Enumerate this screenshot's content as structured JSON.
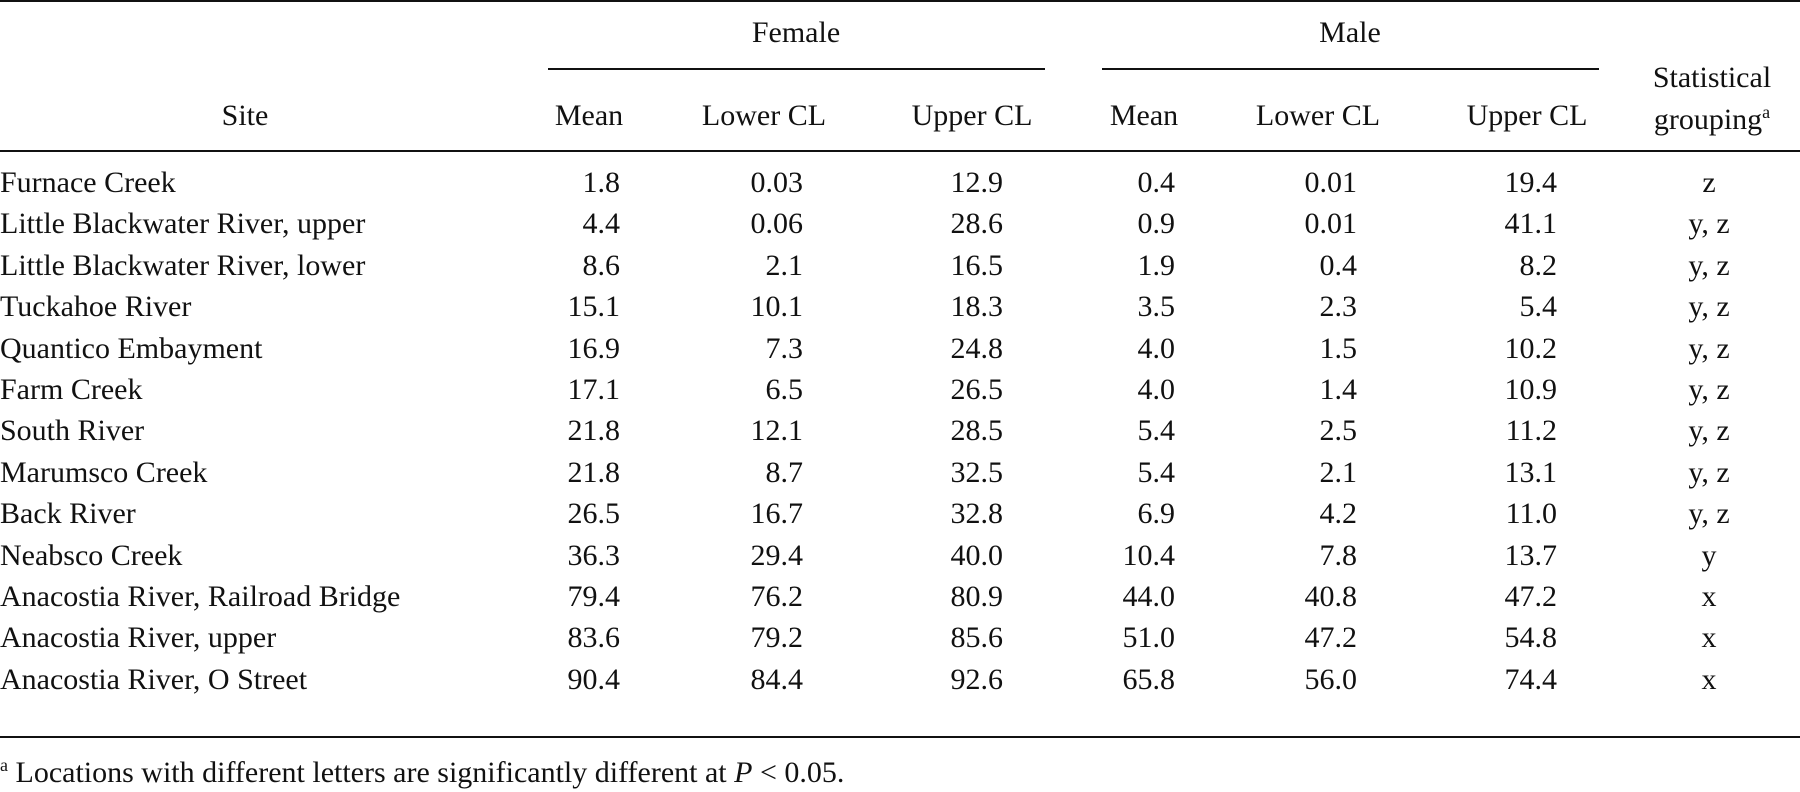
{
  "table": {
    "group_female": "Female",
    "group_male": "Male",
    "col_site": "Site",
    "col_mean": "Mean",
    "col_lower": "Lower CL",
    "col_upper": "Upper CL",
    "col_group_line1": "Statistical",
    "col_group_line2": "grouping",
    "col_group_sup": "a",
    "rows": [
      {
        "site": "Furnace Creek",
        "f_mean": "1.8",
        "f_lower": "0.03",
        "f_upper": "12.9",
        "m_mean": "0.4",
        "m_lower": "0.01",
        "m_upper": "19.4",
        "group": "z"
      },
      {
        "site": "Little Blackwater River, upper",
        "f_mean": "4.4",
        "f_lower": "0.06",
        "f_upper": "28.6",
        "m_mean": "0.9",
        "m_lower": "0.01",
        "m_upper": "41.1",
        "group": "y, z"
      },
      {
        "site": "Little Blackwater River, lower",
        "f_mean": "8.6",
        "f_lower": "2.1",
        "f_upper": "16.5",
        "m_mean": "1.9",
        "m_lower": "0.4",
        "m_upper": "8.2",
        "group": "y, z"
      },
      {
        "site": "Tuckahoe River",
        "f_mean": "15.1",
        "f_lower": "10.1",
        "f_upper": "18.3",
        "m_mean": "3.5",
        "m_lower": "2.3",
        "m_upper": "5.4",
        "group": "y, z"
      },
      {
        "site": "Quantico Embayment",
        "f_mean": "16.9",
        "f_lower": "7.3",
        "f_upper": "24.8",
        "m_mean": "4.0",
        "m_lower": "1.5",
        "m_upper": "10.2",
        "group": "y, z"
      },
      {
        "site": "Farm Creek",
        "f_mean": "17.1",
        "f_lower": "6.5",
        "f_upper": "26.5",
        "m_mean": "4.0",
        "m_lower": "1.4",
        "m_upper": "10.9",
        "group": "y, z"
      },
      {
        "site": "South River",
        "f_mean": "21.8",
        "f_lower": "12.1",
        "f_upper": "28.5",
        "m_mean": "5.4",
        "m_lower": "2.5",
        "m_upper": "11.2",
        "group": "y, z"
      },
      {
        "site": "Marumsco Creek",
        "f_mean": "21.8",
        "f_lower": "8.7",
        "f_upper": "32.5",
        "m_mean": "5.4",
        "m_lower": "2.1",
        "m_upper": "13.1",
        "group": "y, z"
      },
      {
        "site": "Back River",
        "f_mean": "26.5",
        "f_lower": "16.7",
        "f_upper": "32.8",
        "m_mean": "6.9",
        "m_lower": "4.2",
        "m_upper": "11.0",
        "group": "y, z"
      },
      {
        "site": "Neabsco Creek",
        "f_mean": "36.3",
        "f_lower": "29.4",
        "f_upper": "40.0",
        "m_mean": "10.4",
        "m_lower": "7.8",
        "m_upper": "13.7",
        "group": "y"
      },
      {
        "site": "Anacostia River, Railroad Bridge",
        "f_mean": "79.4",
        "f_lower": "76.2",
        "f_upper": "80.9",
        "m_mean": "44.0",
        "m_lower": "40.8",
        "m_upper": "47.2",
        "group": "x"
      },
      {
        "site": "Anacostia River, upper",
        "f_mean": "83.6",
        "f_lower": "79.2",
        "f_upper": "85.6",
        "m_mean": "51.0",
        "m_lower": "47.2",
        "m_upper": "54.8",
        "group": "x"
      },
      {
        "site": "Anacostia River, O Street",
        "f_mean": "90.4",
        "f_lower": "84.4",
        "f_upper": "92.6",
        "m_mean": "65.8",
        "m_lower": "56.0",
        "m_upper": "74.4",
        "group": "x"
      }
    ]
  },
  "footnote": {
    "marker": "a",
    "text_before": "Locations with different letters are significantly different at ",
    "variable": "P",
    "text_after": " < 0.05."
  }
}
